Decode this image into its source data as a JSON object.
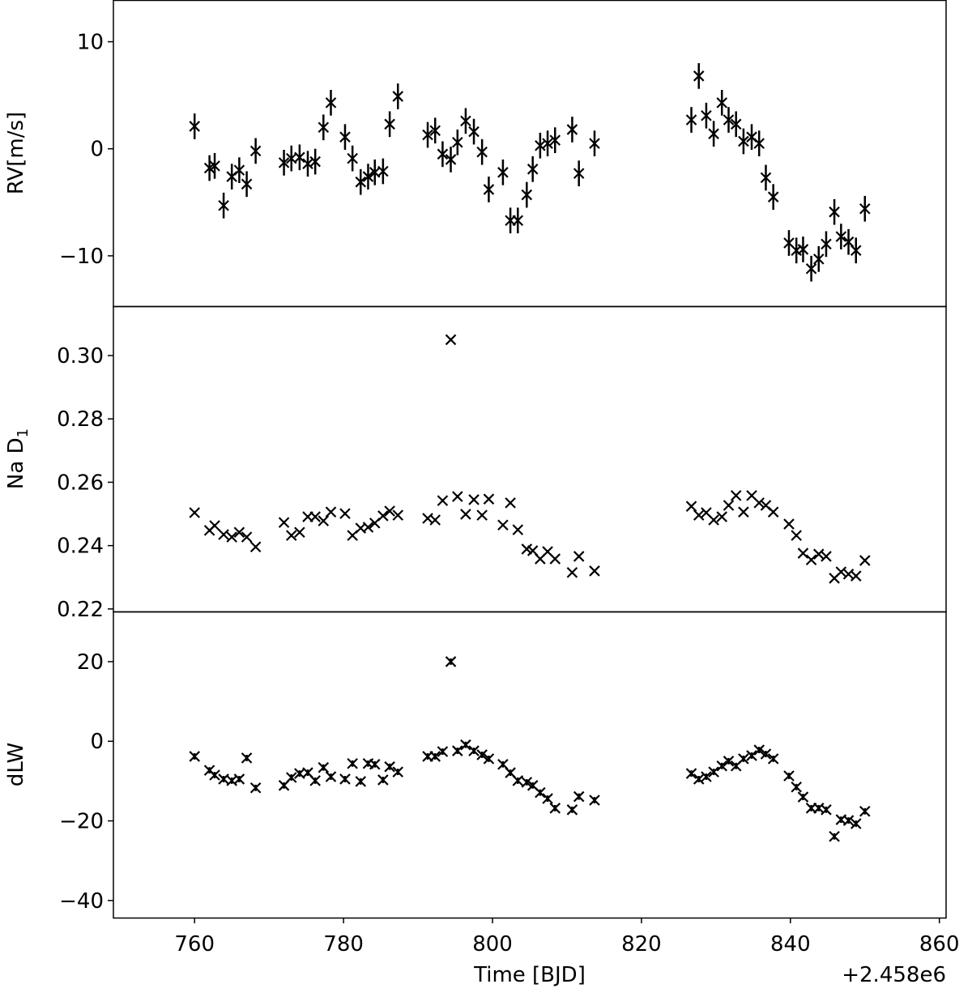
{
  "chart_data": {
    "type": "scatter",
    "xlabel": "Time [BJD]",
    "x_offset_label": "+2.458e6",
    "xlim": [
      749.1,
      860.9
    ],
    "xticks": [
      "760",
      "780",
      "800",
      "820",
      "840",
      "860"
    ],
    "xtick_values": [
      760,
      780,
      800,
      820,
      840,
      860
    ],
    "x": [
      760.0,
      762.0,
      762.7,
      763.9,
      765.0,
      766.0,
      767.0,
      768.2,
      772.0,
      773.0,
      774.1,
      775.2,
      776.2,
      777.3,
      778.3,
      780.2,
      781.2,
      782.3,
      783.3,
      784.2,
      785.3,
      786.2,
      787.3,
      791.3,
      792.3,
      793.3,
      794.4,
      795.3,
      796.4,
      797.5,
      798.6,
      799.5,
      801.4,
      802.4,
      803.4,
      804.6,
      805.4,
      806.4,
      807.4,
      808.4,
      810.7,
      811.6,
      813.7,
      826.7,
      827.7,
      828.7,
      829.7,
      830.8,
      831.7,
      832.7,
      833.7,
      834.8,
      835.8,
      836.7,
      837.7,
      839.8,
      840.8,
      841.7,
      842.8,
      843.8,
      844.8,
      845.9,
      846.8,
      847.8,
      848.8,
      850.0
    ],
    "panels": [
      {
        "ylabel": "RV[m/s]",
        "ylim": [
          -14.7,
          13.9
        ],
        "yticks": [
          "10",
          "0",
          "−10"
        ],
        "ytick_values": [
          10,
          0,
          -10
        ],
        "error": 1.2,
        "values": [
          2.1,
          -1.8,
          -1.6,
          -5.3,
          -2.6,
          -2.0,
          -3.3,
          -0.2,
          -1.3,
          -0.9,
          -0.8,
          -1.4,
          -1.2,
          2.0,
          4.3,
          1.1,
          -0.9,
          -3.1,
          -2.6,
          -2.2,
          -2.1,
          2.3,
          4.9,
          1.3,
          1.7,
          -0.5,
          -1.0,
          0.6,
          2.6,
          1.6,
          -0.3,
          -3.8,
          -2.2,
          -6.7,
          -6.7,
          -4.3,
          -1.9,
          0.3,
          0.5,
          0.8,
          1.8,
          -2.3,
          0.5,
          2.7,
          6.8,
          3.1,
          1.4,
          4.3,
          2.7,
          2.3,
          0.7,
          1.1,
          0.5,
          -2.7,
          -4.5,
          -8.8,
          -9.5,
          -9.4,
          -11.2,
          -10.3,
          -8.9,
          -5.9,
          -8.2,
          -8.7,
          -9.5,
          -5.6
        ]
      },
      {
        "ylabel": "Na D",
        "ylabel_sub": "1",
        "ylim": [
          0.2192,
          0.3156
        ],
        "yticks": [
          "0.30",
          "0.28",
          "0.26",
          "0.24",
          "0.22"
        ],
        "ytick_values": [
          0.3,
          0.28,
          0.26,
          0.24,
          0.22
        ],
        "error": 0.0005,
        "values": [
          0.2504,
          0.2448,
          0.2463,
          0.2435,
          0.2427,
          0.2442,
          0.2427,
          0.2396,
          0.2473,
          0.2432,
          0.2442,
          0.2491,
          0.2491,
          0.2478,
          0.2506,
          0.2501,
          0.2432,
          0.2455,
          0.2458,
          0.2471,
          0.2494,
          0.2509,
          0.2496,
          0.2486,
          0.2481,
          0.2542,
          0.305,
          0.2555,
          0.2499,
          0.2545,
          0.2496,
          0.2547,
          0.2465,
          0.2535,
          0.245,
          0.2389,
          0.2384,
          0.2358,
          0.2381,
          0.2358,
          0.2315,
          0.2366,
          0.232,
          0.2524,
          0.2496,
          0.2504,
          0.2481,
          0.2491,
          0.2527,
          0.2558,
          0.2506,
          0.2558,
          0.2535,
          0.2527,
          0.2506,
          0.2468,
          0.2432,
          0.2376,
          0.2355,
          0.2373,
          0.2366,
          0.2297,
          0.2317,
          0.231,
          0.2304,
          0.2353
        ]
      },
      {
        "ylabel": "dLW",
        "ylim": [
          -44.3,
          32.6
        ],
        "yticks": [
          "20",
          "0",
          "−20",
          "−40"
        ],
        "ytick_values": [
          20,
          0,
          -20,
          -40
        ],
        "error": 0.8,
        "values": [
          -3.8,
          -7.3,
          -8.5,
          -9.5,
          -9.9,
          -9.5,
          -4.2,
          -11.7,
          -11.1,
          -9.1,
          -8.1,
          -7.9,
          -9.9,
          -6.6,
          -8.9,
          -9.5,
          -5.6,
          -10.1,
          -5.6,
          -5.8,
          -9.7,
          -6.4,
          -7.7,
          -3.8,
          -3.8,
          -2.6,
          20.0,
          -2.4,
          -0.9,
          -2.4,
          -3.4,
          -4.4,
          -5.8,
          -7.9,
          -9.9,
          -10.3,
          -11.1,
          -12.9,
          -14.4,
          -16.8,
          -17.2,
          -13.9,
          -14.8,
          -8.1,
          -9.5,
          -8.9,
          -7.7,
          -6.2,
          -5.0,
          -6.2,
          -4.4,
          -3.6,
          -2.2,
          -3.2,
          -4.4,
          -8.7,
          -11.5,
          -14.0,
          -16.8,
          -16.8,
          -17.2,
          -23.9,
          -19.7,
          -19.9,
          -20.7,
          -17.6
        ]
      }
    ]
  }
}
